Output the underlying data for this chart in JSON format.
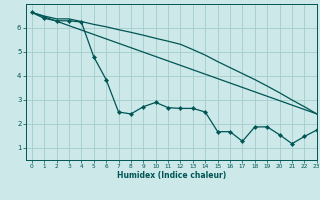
{
  "xlabel": "Humidex (Indice chaleur)",
  "background_color": "#cce8e8",
  "grid_color": "#aad0d0",
  "line_color": "#005555",
  "xlim": [
    -0.5,
    23
  ],
  "ylim": [
    0.5,
    7.0
  ],
  "xticks": [
    0,
    1,
    2,
    3,
    4,
    5,
    6,
    7,
    8,
    9,
    10,
    11,
    12,
    13,
    14,
    15,
    16,
    17,
    18,
    19,
    20,
    21,
    22,
    23
  ],
  "yticks": [
    1,
    2,
    3,
    4,
    5,
    6
  ],
  "line1_x": [
    0,
    1,
    2,
    3,
    4,
    5,
    6,
    7,
    8,
    9,
    10,
    11,
    12,
    13,
    14,
    15,
    16,
    17,
    18,
    19,
    20,
    21,
    22,
    23
  ],
  "line1_y": [
    6.65,
    6.5,
    6.38,
    6.38,
    6.27,
    6.15,
    6.05,
    5.93,
    5.82,
    5.7,
    5.57,
    5.45,
    5.32,
    5.1,
    4.87,
    4.6,
    4.35,
    4.1,
    3.85,
    3.58,
    3.3,
    3.0,
    2.72,
    2.42
  ],
  "line2_x": [
    0,
    1,
    2,
    3,
    4,
    5,
    6,
    7,
    8,
    9,
    10,
    11,
    12,
    13,
    14,
    15,
    16,
    17,
    18,
    19,
    20,
    21,
    22,
    23
  ],
  "line2_y": [
    6.65,
    6.4,
    6.3,
    6.3,
    6.25,
    4.8,
    3.85,
    2.5,
    2.42,
    2.72,
    2.9,
    2.68,
    2.65,
    2.65,
    2.5,
    1.68,
    1.68,
    1.28,
    1.88,
    1.88,
    1.55,
    1.18,
    1.48,
    1.75
  ],
  "line3_x": [
    0,
    23
  ],
  "line3_y": [
    6.65,
    2.42
  ]
}
